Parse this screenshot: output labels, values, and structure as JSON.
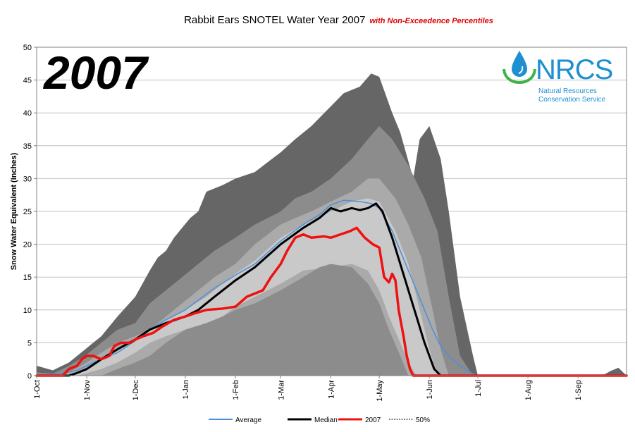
{
  "chart_data": {
    "type": "area",
    "title": "Rabbit Ears SNOTEL Water Year 2007",
    "subtitle": "with Non-Exceedence Percentiles",
    "big_year": "2007",
    "xlabel": "",
    "ylabel": "Snow Water Equivalent (Inches)",
    "ylim": [
      0,
      50
    ],
    "yticks": [
      0,
      5,
      10,
      15,
      20,
      25,
      30,
      35,
      40,
      45,
      50
    ],
    "xlim_days": [
      0,
      365
    ],
    "xticks": [
      {
        "label": "1-Oct",
        "day": 0
      },
      {
        "label": "1-Nov",
        "day": 31
      },
      {
        "label": "1-Dec",
        "day": 61
      },
      {
        "label": "1-Jan",
        "day": 92
      },
      {
        "label": "1-Feb",
        "day": 123
      },
      {
        "label": "1-Mar",
        "day": 151
      },
      {
        "label": "1-Apr",
        "day": 182
      },
      {
        "label": "1-May",
        "day": 212
      },
      {
        "label": "1-Jun",
        "day": 243
      },
      {
        "label": "1-Jul",
        "day": 273
      },
      {
        "label": "1-Aug",
        "day": 304
      },
      {
        "label": "1-Sep",
        "day": 335
      }
    ],
    "grid": "horizontal",
    "legend_position": "bottom",
    "bands": [
      {
        "color": "#666666",
        "upper": [
          [
            0,
            1.5
          ],
          [
            10,
            0.8
          ],
          [
            20,
            2
          ],
          [
            30,
            4
          ],
          [
            40,
            6
          ],
          [
            50,
            9
          ],
          [
            61,
            12
          ],
          [
            70,
            16
          ],
          [
            75,
            18
          ],
          [
            80,
            19
          ],
          [
            85,
            21
          ],
          [
            95,
            24
          ],
          [
            100,
            25
          ],
          [
            105,
            28
          ],
          [
            115,
            29
          ],
          [
            123,
            30
          ],
          [
            135,
            31
          ],
          [
            151,
            34
          ],
          [
            160,
            36
          ],
          [
            170,
            38
          ],
          [
            182,
            41
          ],
          [
            190,
            43
          ],
          [
            200,
            44
          ],
          [
            207,
            46
          ],
          [
            212,
            45.5
          ],
          [
            220,
            40
          ],
          [
            225,
            37
          ],
          [
            233,
            30
          ],
          [
            237,
            36
          ],
          [
            243,
            38
          ],
          [
            250,
            33
          ],
          [
            255,
            25
          ],
          [
            262,
            12
          ],
          [
            270,
            3
          ],
          [
            273,
            0
          ],
          [
            350,
            0
          ],
          [
            355,
            0.7
          ],
          [
            360,
            1.2
          ],
          [
            365,
            0
          ]
        ],
        "lower": [
          [
            0,
            0
          ],
          [
            365,
            0
          ]
        ]
      },
      {
        "color": "#8c8c8c",
        "upper": [
          [
            0,
            0.5
          ],
          [
            10,
            0.3
          ],
          [
            20,
            1.5
          ],
          [
            30,
            3
          ],
          [
            40,
            5
          ],
          [
            50,
            7
          ],
          [
            61,
            8
          ],
          [
            70,
            11
          ],
          [
            80,
            13
          ],
          [
            90,
            15
          ],
          [
            100,
            17
          ],
          [
            110,
            19
          ],
          [
            123,
            21
          ],
          [
            135,
            23
          ],
          [
            151,
            25
          ],
          [
            160,
            27
          ],
          [
            170,
            28
          ],
          [
            182,
            30
          ],
          [
            195,
            33
          ],
          [
            205,
            36
          ],
          [
            212,
            38
          ],
          [
            220,
            36
          ],
          [
            230,
            32
          ],
          [
            240,
            27
          ],
          [
            248,
            22
          ],
          [
            255,
            12
          ],
          [
            262,
            3
          ],
          [
            270,
            0
          ],
          [
            365,
            0
          ]
        ],
        "lower": [
          [
            0,
            0
          ],
          [
            365,
            0
          ]
        ]
      },
      {
        "color": "#aaaaaa",
        "upper": [
          [
            0,
            0
          ],
          [
            20,
            0.5
          ],
          [
            31,
            2
          ],
          [
            40,
            3.5
          ],
          [
            50,
            5
          ],
          [
            61,
            6
          ],
          [
            70,
            7
          ],
          [
            80,
            9
          ],
          [
            90,
            11
          ],
          [
            100,
            13
          ],
          [
            110,
            15
          ],
          [
            123,
            17
          ],
          [
            135,
            20
          ],
          [
            151,
            23
          ],
          [
            160,
            24
          ],
          [
            170,
            25
          ],
          [
            182,
            26.5
          ],
          [
            195,
            28
          ],
          [
            205,
            30
          ],
          [
            212,
            30
          ],
          [
            222,
            27
          ],
          [
            230,
            23
          ],
          [
            238,
            18
          ],
          [
            245,
            10
          ],
          [
            250,
            4
          ],
          [
            255,
            0
          ],
          [
            365,
            0
          ]
        ],
        "lower": [
          [
            0,
            0
          ],
          [
            365,
            0
          ]
        ]
      },
      {
        "color": "#c9c9c9",
        "upper": [
          [
            0,
            0
          ],
          [
            25,
            0.3
          ],
          [
            31,
            1
          ],
          [
            40,
            2.5
          ],
          [
            50,
            4
          ],
          [
            61,
            5.5
          ],
          [
            70,
            7
          ],
          [
            80,
            8.5
          ],
          [
            92,
            10
          ],
          [
            105,
            12
          ],
          [
            115,
            14
          ],
          [
            123,
            15.5
          ],
          [
            135,
            17.5
          ],
          [
            151,
            21
          ],
          [
            165,
            23
          ],
          [
            182,
            25
          ],
          [
            195,
            26.5
          ],
          [
            205,
            27
          ],
          [
            212,
            26.5
          ],
          [
            222,
            22
          ],
          [
            230,
            17
          ],
          [
            237,
            10
          ],
          [
            243,
            4
          ],
          [
            248,
            0
          ],
          [
            365,
            0
          ]
        ],
        "lower": [
          [
            0,
            0
          ],
          [
            25,
            0
          ],
          [
            40,
            1
          ],
          [
            50,
            2
          ],
          [
            61,
            3.5
          ],
          [
            70,
            5
          ],
          [
            80,
            6
          ],
          [
            92,
            7
          ],
          [
            105,
            8
          ],
          [
            115,
            9
          ],
          [
            123,
            10.5
          ],
          [
            135,
            12
          ],
          [
            151,
            14
          ],
          [
            165,
            16
          ],
          [
            182,
            16.5
          ],
          [
            195,
            17
          ],
          [
            205,
            16
          ],
          [
            212,
            13
          ],
          [
            218,
            9
          ],
          [
            225,
            5
          ],
          [
            230,
            2
          ],
          [
            235,
            0
          ],
          [
            365,
            0
          ]
        ]
      },
      {
        "color": "#8c8c8c",
        "upper": [
          [
            0,
            0
          ],
          [
            40,
            0
          ],
          [
            50,
            1
          ],
          [
            61,
            2
          ],
          [
            70,
            3
          ],
          [
            80,
            5
          ],
          [
            92,
            7
          ],
          [
            105,
            8
          ],
          [
            115,
            9
          ],
          [
            123,
            10
          ],
          [
            135,
            11
          ],
          [
            151,
            13
          ],
          [
            165,
            15
          ],
          [
            175,
            16.5
          ],
          [
            182,
            17
          ],
          [
            195,
            16.5
          ],
          [
            205,
            14
          ],
          [
            212,
            11
          ],
          [
            218,
            7
          ],
          [
            225,
            3
          ],
          [
            230,
            0
          ],
          [
            365,
            0
          ]
        ],
        "lower": [
          [
            0,
            0
          ],
          [
            365,
            0
          ]
        ]
      }
    ],
    "series": [
      {
        "name": "Average",
        "color": "#4a90d9",
        "points": [
          [
            0,
            0
          ],
          [
            15,
            0.3
          ],
          [
            25,
            0.8
          ],
          [
            31,
            1.5
          ],
          [
            40,
            2.5
          ],
          [
            50,
            3.5
          ],
          [
            61,
            5.3
          ],
          [
            70,
            7
          ],
          [
            80,
            8.5
          ],
          [
            92,
            10
          ],
          [
            100,
            11.5
          ],
          [
            110,
            13.3
          ],
          [
            123,
            15.3
          ],
          [
            135,
            17
          ],
          [
            151,
            20.5
          ],
          [
            165,
            23
          ],
          [
            175,
            24.5
          ],
          [
            182,
            26
          ],
          [
            190,
            26.7
          ],
          [
            200,
            26.5
          ],
          [
            207,
            26.2
          ],
          [
            212,
            25.5
          ],
          [
            220,
            22
          ],
          [
            225,
            19
          ],
          [
            230,
            16
          ],
          [
            235,
            13
          ],
          [
            240,
            10
          ],
          [
            245,
            7
          ],
          [
            250,
            4.5
          ],
          [
            255,
            3
          ],
          [
            262,
            1.5
          ],
          [
            268,
            0.5
          ],
          [
            273,
            0
          ],
          [
            365,
            0
          ]
        ]
      },
      {
        "name": "Median",
        "color": "#000000",
        "points": [
          [
            0,
            0
          ],
          [
            20,
            0
          ],
          [
            25,
            0.4
          ],
          [
            31,
            1
          ],
          [
            40,
            2.5
          ],
          [
            50,
            4
          ],
          [
            61,
            5.5
          ],
          [
            70,
            7
          ],
          [
            80,
            8
          ],
          [
            92,
            9
          ],
          [
            100,
            10
          ],
          [
            110,
            12
          ],
          [
            123,
            14.5
          ],
          [
            135,
            16.5
          ],
          [
            151,
            20
          ],
          [
            165,
            22.5
          ],
          [
            175,
            24
          ],
          [
            182,
            25.5
          ],
          [
            188,
            25
          ],
          [
            195,
            25.5
          ],
          [
            200,
            25.2
          ],
          [
            205,
            25.5
          ],
          [
            210,
            26.2
          ],
          [
            214,
            25
          ],
          [
            220,
            21
          ],
          [
            225,
            17
          ],
          [
            230,
            13
          ],
          [
            235,
            9
          ],
          [
            240,
            5
          ],
          [
            243,
            3
          ],
          [
            246,
            1
          ],
          [
            250,
            0
          ],
          [
            365,
            0
          ]
        ]
      },
      {
        "name": "2007",
        "color": "#ee1111",
        "points": [
          [
            0,
            0
          ],
          [
            16,
            0
          ],
          [
            20,
            1
          ],
          [
            25,
            1.5
          ],
          [
            28,
            2.5
          ],
          [
            31,
            3
          ],
          [
            35,
            3
          ],
          [
            40,
            2.5
          ],
          [
            45,
            3
          ],
          [
            48,
            4.5
          ],
          [
            52,
            5
          ],
          [
            58,
            5
          ],
          [
            61,
            5.5
          ],
          [
            66,
            6
          ],
          [
            72,
            6.5
          ],
          [
            78,
            7.5
          ],
          [
            85,
            8.5
          ],
          [
            92,
            9
          ],
          [
            98,
            9.5
          ],
          [
            105,
            10
          ],
          [
            115,
            10.2
          ],
          [
            123,
            10.5
          ],
          [
            130,
            12
          ],
          [
            135,
            12.5
          ],
          [
            140,
            13
          ],
          [
            145,
            15
          ],
          [
            151,
            17
          ],
          [
            155,
            19
          ],
          [
            160,
            21
          ],
          [
            165,
            21.5
          ],
          [
            170,
            21
          ],
          [
            178,
            21.2
          ],
          [
            182,
            21
          ],
          [
            188,
            21.5
          ],
          [
            194,
            22
          ],
          [
            198,
            22.5
          ],
          [
            203,
            21
          ],
          [
            208,
            20
          ],
          [
            212,
            19.5
          ],
          [
            215,
            15
          ],
          [
            218,
            14.2
          ],
          [
            220,
            15.5
          ],
          [
            222,
            14.5
          ],
          [
            224,
            10
          ],
          [
            227,
            6
          ],
          [
            229,
            3
          ],
          [
            231,
            1
          ],
          [
            233,
            0
          ],
          [
            365,
            0
          ]
        ]
      },
      {
        "name": "50%",
        "color": "#000000",
        "dashed": true,
        "points": [
          [
            0,
            0
          ],
          [
            365,
            0
          ]
        ]
      }
    ],
    "legend": [
      {
        "label": "Average",
        "color": "#4a90d9",
        "style": "solid",
        "width": 2
      },
      {
        "label": "Median",
        "color": "#000000",
        "style": "solid",
        "width": 3
      },
      {
        "label": "2007",
        "color": "#ee1111",
        "style": "solid",
        "width": 3
      },
      {
        "label": "50%",
        "color": "#000000",
        "style": "dashed",
        "width": 1
      }
    ]
  },
  "logo": {
    "name": "NRCS",
    "line1": "Natural Resources",
    "line2": "Conservation Service",
    "color": "#1e8fd0",
    "accent": "#3db54a"
  }
}
